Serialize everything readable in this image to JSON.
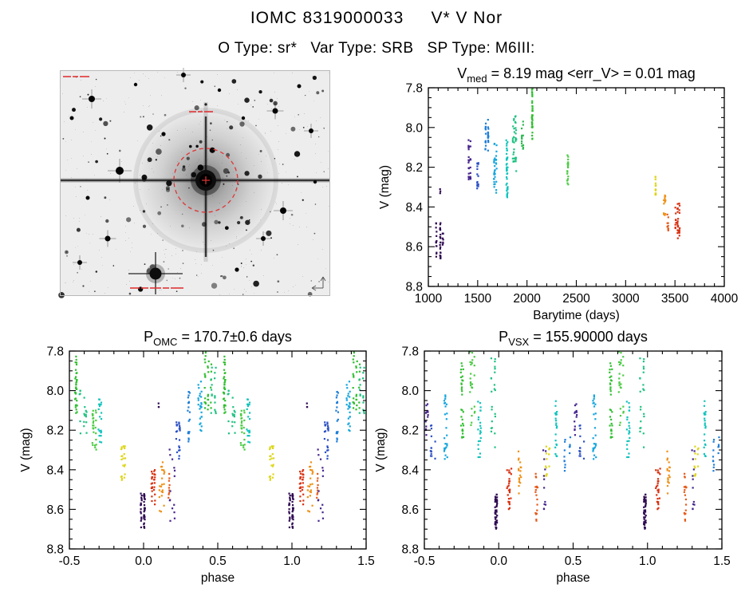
{
  "header": {
    "title": "IOMC 8319000033     V* V Nor",
    "subtitle": "O Type: sr*   Var Type: SRB   SP Type: M6III:"
  },
  "starfield": {
    "background": "#ededee",
    "target_marker_color": "#e03535"
  },
  "chart_data": [
    {
      "key": "ts",
      "type": "scatter",
      "seed": 7,
      "phase_duplicate": false,
      "title": "V_med = 8.19 mag <err_V> = 0.01 mag",
      "title_parts": [
        {
          "t": "V"
        },
        {
          "t": "med",
          "sub": true
        },
        {
          "t": " = 8.19 mag <err_V> = 0.01 mag"
        }
      ],
      "xlabel": "Barytime (days)",
      "ylabel": "V (mag)",
      "xlim": [
        1000,
        4000
      ],
      "ylim": [
        7.8,
        8.8
      ],
      "y_inverted": true,
      "xticks": [
        1000,
        1500,
        2000,
        2500,
        3000,
        3500,
        4000
      ],
      "xtick_labels": [
        "1000",
        "1500",
        "2000",
        "2500",
        "3000",
        "3500",
        "4000"
      ],
      "yticks": [
        7.8,
        8.0,
        8.2,
        8.4,
        8.6,
        8.8
      ],
      "ytick_labels": [
        "7.8",
        "8.0",
        "8.2",
        "8.4",
        "8.6",
        "8.8"
      ],
      "xminor": 100,
      "yminor": 0.05,
      "clusters": [
        {
          "x": 1100,
          "xw": 45,
          "v": [
            8.48,
            8.66
          ],
          "color": "#2f0a52",
          "n": 40
        },
        {
          "x": 1148,
          "xw": 10,
          "v": [
            8.52,
            8.6
          ],
          "color": "#2f0a52",
          "n": 8
        },
        {
          "x": 1120,
          "xw": 8,
          "v": [
            8.3,
            8.34
          ],
          "color": "#2f0a52",
          "n": 3
        },
        {
          "x": 1415,
          "xw": 28,
          "v": [
            8.03,
            8.27
          ],
          "color": "#46258e",
          "n": 26
        },
        {
          "x": 1502,
          "xw": 18,
          "v": [
            8.17,
            8.32
          ],
          "color": "#2b4fc4",
          "n": 16
        },
        {
          "x": 1592,
          "xw": 38,
          "v": [
            7.96,
            8.12
          ],
          "color": "#1e7fd8",
          "n": 28
        },
        {
          "x": 1682,
          "xw": 38,
          "v": [
            8.08,
            8.33
          ],
          "color": "#15a6de",
          "n": 32
        },
        {
          "x": 1782,
          "xw": 48,
          "v": [
            8.06,
            8.36
          ],
          "color": "#12c4bc",
          "n": 42
        },
        {
          "x": 1875,
          "xw": 45,
          "v": [
            7.93,
            8.22
          ],
          "color": "#1fc282",
          "n": 36
        },
        {
          "x": 1955,
          "xw": 18,
          "v": [
            7.97,
            8.12
          ],
          "color": "#2cba50",
          "n": 14
        },
        {
          "x": 2058,
          "xw": 42,
          "v": [
            7.79,
            8.06
          ],
          "color": "#2fbf2f",
          "n": 40
        },
        {
          "x": 2415,
          "xw": 25,
          "v": [
            8.13,
            8.3
          ],
          "color": "#4ccc44",
          "n": 20
        },
        {
          "x": 3312,
          "xw": 25,
          "v": [
            8.24,
            8.34
          ],
          "color": "#ded61c",
          "n": 20
        },
        {
          "x": 3395,
          "xw": 18,
          "v": [
            8.34,
            8.47
          ],
          "color": "#ef9016",
          "n": 16
        },
        {
          "x": 3428,
          "xw": 10,
          "v": [
            8.42,
            8.52
          ],
          "color": "#e55a1a",
          "n": 10
        },
        {
          "x": 3530,
          "xw": 65,
          "v": [
            8.38,
            8.57
          ],
          "color": "#d83010",
          "n": 34
        }
      ]
    },
    {
      "key": "omc",
      "type": "scatter",
      "seed": 11,
      "phase_duplicate": true,
      "title": "P_OMC = 170.7±0.6 days",
      "title_parts": [
        {
          "t": "P"
        },
        {
          "t": "OMC",
          "sub": true
        },
        {
          "t": " = 170.7±0.6 days"
        }
      ],
      "xlabel": "phase",
      "ylabel": "V (mag)",
      "xlim": [
        -0.5,
        1.5
      ],
      "ylim": [
        7.8,
        8.8
      ],
      "y_inverted": true,
      "xticks": [
        -0.5,
        0.0,
        0.5,
        1.0,
        1.5
      ],
      "xtick_labels": [
        "-0.5",
        "0.0",
        "0.5",
        "1.0",
        "1.5"
      ],
      "yticks": [
        7.8,
        8.0,
        8.2,
        8.4,
        8.6,
        8.8
      ],
      "ytick_labels": [
        "7.8",
        "8.0",
        "8.2",
        "8.4",
        "8.6",
        "8.8"
      ],
      "xminor": 0.1,
      "yminor": 0.05,
      "clusters": [
        {
          "x": -0.46,
          "xw": 0.07,
          "v": [
            7.82,
            8.12
          ],
          "color": "#2fbf2f",
          "n": 34
        },
        {
          "x": -0.41,
          "xw": 0.05,
          "v": [
            8.0,
            8.22
          ],
          "color": "#1fc282",
          "n": 18
        },
        {
          "x": -0.33,
          "xw": 0.07,
          "v": [
            8.1,
            8.3
          ],
          "color": "#4ccc44",
          "n": 26
        },
        {
          "x": -0.29,
          "xw": 0.05,
          "v": [
            8.04,
            8.28
          ],
          "color": "#12c4bc",
          "n": 20
        },
        {
          "x": -0.15,
          "xw": 0.05,
          "v": [
            8.28,
            8.46
          ],
          "color": "#ded61c",
          "n": 22
        },
        {
          "x": -0.01,
          "xw": 0.06,
          "v": [
            8.52,
            8.7
          ],
          "color": "#2f0a52",
          "n": 46
        },
        {
          "x": 0.07,
          "xw": 0.05,
          "v": [
            8.4,
            8.58
          ],
          "color": "#d83010",
          "n": 28
        },
        {
          "x": 0.13,
          "xw": 0.045,
          "v": [
            8.36,
            8.62
          ],
          "color": "#ef9016",
          "n": 22
        },
        {
          "x": 0.17,
          "xw": 0.02,
          "v": [
            8.42,
            8.55
          ],
          "color": "#e55a1a",
          "n": 9
        },
        {
          "x": 0.19,
          "xw": 0.035,
          "v": [
            8.28,
            8.66
          ],
          "color": "#46258e",
          "n": 14
        },
        {
          "x": 0.1,
          "xw": 0.01,
          "v": [
            8.06,
            8.1
          ],
          "color": "#2f0a52",
          "n": 3
        },
        {
          "x": 0.24,
          "xw": 0.05,
          "v": [
            8.16,
            8.36
          ],
          "color": "#2b4fc4",
          "n": 22
        },
        {
          "x": 0.3,
          "xw": 0.05,
          "v": [
            8.0,
            8.26
          ],
          "color": "#1e7fd8",
          "n": 22
        },
        {
          "x": 0.37,
          "xw": 0.05,
          "v": [
            7.95,
            8.22
          ],
          "color": "#15a6de",
          "n": 26
        },
        {
          "x": 0.44,
          "xw": 0.05,
          "v": [
            7.8,
            8.1
          ],
          "color": "#2fbf2f",
          "n": 30
        },
        {
          "x": 0.47,
          "xw": 0.04,
          "v": [
            7.86,
            8.12
          ],
          "color": "#1fc282",
          "n": 16
        }
      ]
    },
    {
      "key": "vsx",
      "type": "scatter",
      "seed": 13,
      "phase_duplicate": true,
      "title": "P_VSX = 155.90000 days",
      "title_parts": [
        {
          "t": "P"
        },
        {
          "t": "VSX",
          "sub": true
        },
        {
          "t": " = 155.90000 days"
        }
      ],
      "xlabel": "phase",
      "ylabel": "V (mag)",
      "xlim": [
        -0.5,
        1.5
      ],
      "ylim": [
        7.8,
        8.8
      ],
      "y_inverted": true,
      "xticks": [
        -0.5,
        0.0,
        0.5,
        1.0,
        1.5
      ],
      "xtick_labels": [
        "-0.5",
        "0.0",
        "0.5",
        "1.0",
        "1.5"
      ],
      "yticks": [
        7.8,
        8.0,
        8.2,
        8.4,
        8.6,
        8.8
      ],
      "ytick_labels": [
        "7.8",
        "8.0",
        "8.2",
        "8.4",
        "8.6",
        "8.8"
      ],
      "xminor": 0.1,
      "yminor": 0.05,
      "clusters": [
        {
          "x": -0.47,
          "xw": 0.04,
          "v": [
            8.05,
            8.25
          ],
          "color": "#46258e",
          "n": 14
        },
        {
          "x": -0.44,
          "xw": 0.04,
          "v": [
            8.15,
            8.35
          ],
          "color": "#2b4fc4",
          "n": 14
        },
        {
          "x": -0.34,
          "xw": 0.06,
          "v": [
            8.02,
            8.35
          ],
          "color": "#15a6de",
          "n": 26
        },
        {
          "x": -0.27,
          "xw": 0.07,
          "v": [
            7.85,
            8.25
          ],
          "color": "#2fbf2f",
          "n": 30
        },
        {
          "x": -0.16,
          "xw": 0.06,
          "v": [
            7.8,
            8.18
          ],
          "color": "#4ccc44",
          "n": 26
        },
        {
          "x": -0.12,
          "xw": 0.05,
          "v": [
            8.05,
            8.35
          ],
          "color": "#12c4bc",
          "n": 22
        },
        {
          "x": -0.03,
          "xw": 0.04,
          "v": [
            7.8,
            8.3
          ],
          "color": "#1fc282",
          "n": 22
        },
        {
          "x": 0.0,
          "xw": 0.05,
          "v": [
            8.52,
            8.7
          ],
          "color": "#2f0a52",
          "n": 42
        },
        {
          "x": 0.08,
          "xw": 0.05,
          "v": [
            8.38,
            8.6
          ],
          "color": "#d83010",
          "n": 26
        },
        {
          "x": 0.15,
          "xw": 0.045,
          "v": [
            8.3,
            8.52
          ],
          "color": "#ef9016",
          "n": 18
        },
        {
          "x": 0.24,
          "xw": 0.06,
          "v": [
            8.42,
            8.66
          ],
          "color": "#e55a1a",
          "n": 18
        },
        {
          "x": 0.3,
          "xw": 0.045,
          "v": [
            8.3,
            8.6
          ],
          "color": "#46258e",
          "n": 12
        },
        {
          "x": 0.33,
          "xw": 0.035,
          "v": [
            8.28,
            8.45
          ],
          "color": "#ded61c",
          "n": 13
        },
        {
          "x": 0.4,
          "xw": 0.06,
          "v": [
            8.05,
            8.35
          ],
          "color": "#12c4bc",
          "n": 22
        },
        {
          "x": 0.46,
          "xw": 0.04,
          "v": [
            8.2,
            8.42
          ],
          "color": "#1e7fd8",
          "n": 14
        }
      ]
    }
  ]
}
